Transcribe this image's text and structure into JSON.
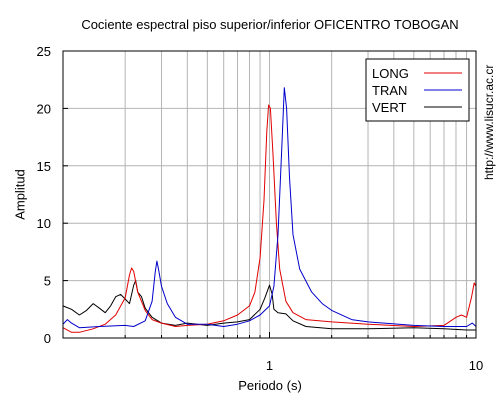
{
  "chart_data": {
    "type": "line",
    "title": "Cociente espectral piso superior/inferior OFICENTRO TOBOGAN",
    "xlabel": "Periodo (s)",
    "ylabel": "Amplitud",
    "xscale": "log",
    "xlim": [
      0.1,
      10
    ],
    "ylim": [
      0,
      25
    ],
    "x_tick_labels": [
      "1",
      "10"
    ],
    "y_ticks": [
      0,
      5,
      10,
      15,
      20,
      25
    ],
    "grid": true,
    "legend_position": "top-right",
    "side_text": "http://www.lisucr.ac.cr",
    "series": [
      {
        "name": "LONG",
        "color": "#e00000",
        "points": [
          [
            0.1,
            0.9
          ],
          [
            0.11,
            0.5
          ],
          [
            0.12,
            0.5
          ],
          [
            0.14,
            0.8
          ],
          [
            0.16,
            1.2
          ],
          [
            0.18,
            2.0
          ],
          [
            0.2,
            3.5
          ],
          [
            0.21,
            5.5
          ],
          [
            0.215,
            6.1
          ],
          [
            0.22,
            5.8
          ],
          [
            0.23,
            4.0
          ],
          [
            0.25,
            2.4
          ],
          [
            0.27,
            1.6
          ],
          [
            0.3,
            1.3
          ],
          [
            0.35,
            1.0
          ],
          [
            0.4,
            1.1
          ],
          [
            0.5,
            1.2
          ],
          [
            0.6,
            1.5
          ],
          [
            0.7,
            2.0
          ],
          [
            0.8,
            2.8
          ],
          [
            0.85,
            4.0
          ],
          [
            0.9,
            7.0
          ],
          [
            0.94,
            12.0
          ],
          [
            0.97,
            18.0
          ],
          [
            0.99,
            20.3
          ],
          [
            1.01,
            20.0
          ],
          [
            1.04,
            16.0
          ],
          [
            1.08,
            10.0
          ],
          [
            1.12,
            6.0
          ],
          [
            1.2,
            3.2
          ],
          [
            1.3,
            2.2
          ],
          [
            1.5,
            1.6
          ],
          [
            2.0,
            1.4
          ],
          [
            3.0,
            1.2
          ],
          [
            5.0,
            1.0
          ],
          [
            7.0,
            1.1
          ],
          [
            8.0,
            1.8
          ],
          [
            8.5,
            2.0
          ],
          [
            9.0,
            1.8
          ],
          [
            9.5,
            3.5
          ],
          [
            9.8,
            4.8
          ],
          [
            10,
            4.5
          ]
        ]
      },
      {
        "name": "TRAN",
        "color": "#0000cc",
        "points": [
          [
            0.1,
            1.2
          ],
          [
            0.105,
            1.6
          ],
          [
            0.11,
            1.3
          ],
          [
            0.12,
            0.9
          ],
          [
            0.15,
            1.0
          ],
          [
            0.2,
            1.1
          ],
          [
            0.22,
            1.0
          ],
          [
            0.25,
            1.5
          ],
          [
            0.27,
            3.2
          ],
          [
            0.28,
            5.8
          ],
          [
            0.285,
            6.7
          ],
          [
            0.29,
            6.0
          ],
          [
            0.3,
            4.5
          ],
          [
            0.32,
            3.0
          ],
          [
            0.35,
            1.8
          ],
          [
            0.4,
            1.2
          ],
          [
            0.5,
            1.2
          ],
          [
            0.6,
            1.0
          ],
          [
            0.7,
            1.2
          ],
          [
            0.8,
            1.5
          ],
          [
            0.9,
            2.0
          ],
          [
            1.0,
            2.8
          ],
          [
            1.05,
            4.5
          ],
          [
            1.1,
            9.0
          ],
          [
            1.15,
            17.0
          ],
          [
            1.18,
            21.8
          ],
          [
            1.21,
            20.0
          ],
          [
            1.25,
            14.0
          ],
          [
            1.3,
            9.0
          ],
          [
            1.4,
            6.0
          ],
          [
            1.6,
            4.0
          ],
          [
            1.8,
            3.0
          ],
          [
            2.0,
            2.4
          ],
          [
            2.5,
            1.6
          ],
          [
            3.0,
            1.4
          ],
          [
            5.0,
            1.1
          ],
          [
            7.0,
            1.0
          ],
          [
            9.0,
            1.0
          ],
          [
            9.6,
            1.3
          ],
          [
            10,
            1.0
          ]
        ]
      },
      {
        "name": "VERT",
        "color": "#000000",
        "points": [
          [
            0.1,
            2.8
          ],
          [
            0.11,
            2.5
          ],
          [
            0.12,
            2.0
          ],
          [
            0.13,
            2.4
          ],
          [
            0.14,
            3.0
          ],
          [
            0.15,
            2.6
          ],
          [
            0.16,
            2.2
          ],
          [
            0.17,
            2.8
          ],
          [
            0.18,
            3.6
          ],
          [
            0.19,
            3.8
          ],
          [
            0.2,
            3.4
          ],
          [
            0.21,
            3.0
          ],
          [
            0.22,
            4.6
          ],
          [
            0.225,
            5.0
          ],
          [
            0.23,
            4.0
          ],
          [
            0.24,
            3.6
          ],
          [
            0.25,
            2.6
          ],
          [
            0.27,
            1.8
          ],
          [
            0.3,
            1.3
          ],
          [
            0.35,
            1.1
          ],
          [
            0.4,
            1.3
          ],
          [
            0.5,
            1.1
          ],
          [
            0.6,
            1.3
          ],
          [
            0.7,
            1.4
          ],
          [
            0.8,
            1.6
          ],
          [
            0.9,
            2.5
          ],
          [
            0.95,
            3.5
          ],
          [
            1.0,
            4.6
          ],
          [
            1.03,
            3.8
          ],
          [
            1.05,
            2.5
          ],
          [
            1.1,
            2.2
          ],
          [
            1.2,
            2.1
          ],
          [
            1.3,
            1.5
          ],
          [
            1.5,
            1.0
          ],
          [
            2.0,
            0.8
          ],
          [
            3.0,
            0.8
          ],
          [
            5.0,
            0.9
          ],
          [
            7.0,
            0.8
          ],
          [
            9.0,
            0.7
          ],
          [
            10,
            0.7
          ]
        ]
      }
    ]
  }
}
